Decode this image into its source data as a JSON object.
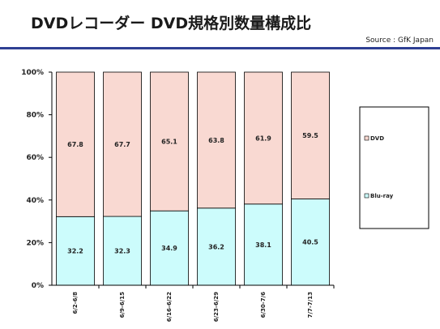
{
  "slide": {
    "title": "DVDレコーダー DVD規格別数量構成比",
    "source": "Source : GfK Japan"
  },
  "colors": {
    "rule": "#2e3f93",
    "dvd": "#f9d9d2",
    "bluray": "#ccfcfc",
    "bar_stroke": "#000000"
  },
  "chart_data": {
    "type": "bar",
    "stacked": true,
    "categories": [
      "6/2-6/8",
      "6/9-6/15",
      "6/16-6/22",
      "6/23-6/29",
      "6/30-7/6",
      "7/7-7/13"
    ],
    "series": [
      {
        "name": "Blu-ray",
        "values": [
          32.2,
          32.3,
          34.9,
          36.2,
          38.1,
          40.5
        ]
      },
      {
        "name": "DVD",
        "values": [
          67.8,
          67.7,
          65.1,
          63.8,
          61.9,
          59.5
        ]
      }
    ],
    "yticks": [
      "0%",
      "20%",
      "40%",
      "60%",
      "80%",
      "100%"
    ],
    "ylim": [
      0,
      100
    ],
    "legend": {
      "position": "right",
      "order": [
        "DVD",
        "Blu-ray"
      ]
    }
  }
}
